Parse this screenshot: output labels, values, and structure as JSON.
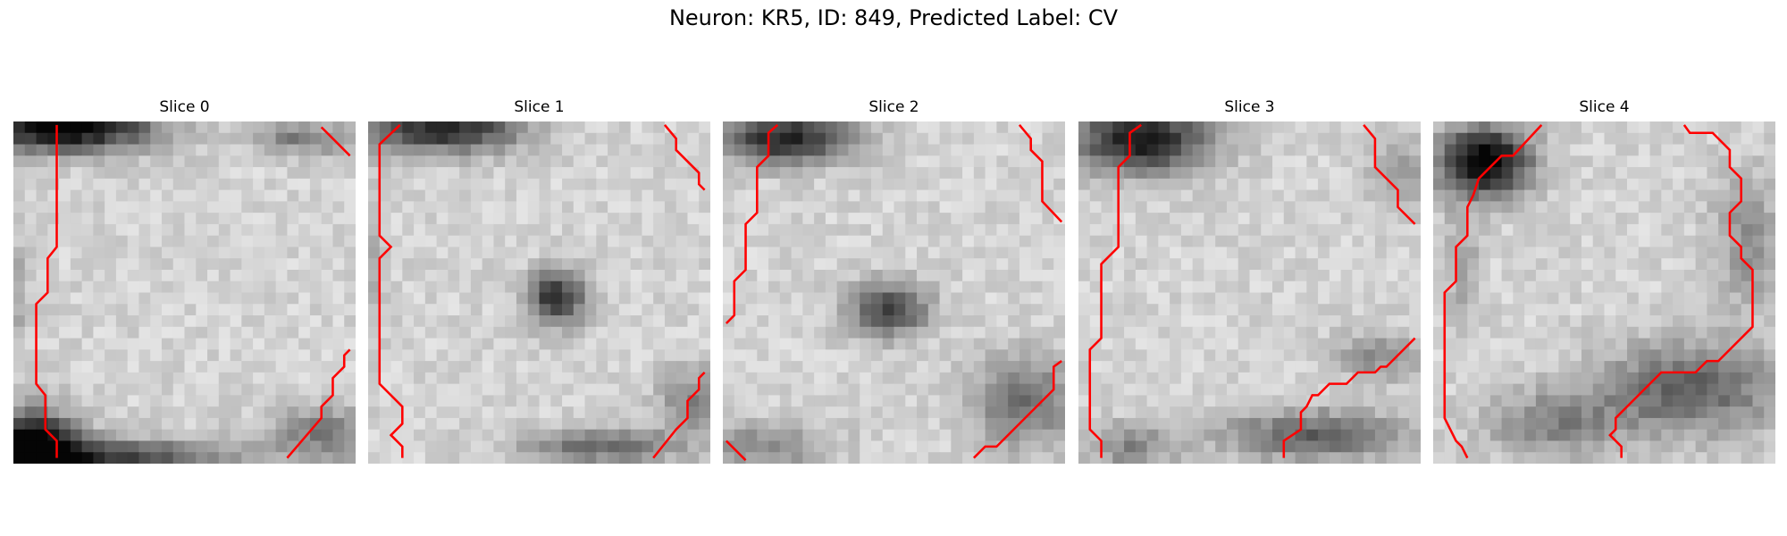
{
  "figure": {
    "title": "Neuron: KR5, ID: 849, Predicted Label: CV"
  },
  "panels": [
    {
      "title": "Slice 0",
      "icon": "grayscale-microscopy-slice-with-red-boundary-contour"
    },
    {
      "title": "Slice 1",
      "icon": "grayscale-microscopy-slice-with-red-boundary-contour"
    },
    {
      "title": "Slice 2",
      "icon": "grayscale-microscopy-slice-with-red-boundary-contour"
    },
    {
      "title": "Slice 3",
      "icon": "grayscale-microscopy-slice-with-red-boundary-contour"
    },
    {
      "title": "Slice 4",
      "icon": "grayscale-microscopy-slice-with-red-boundary-contour"
    }
  ],
  "colors": {
    "contour": "#ff0000"
  }
}
